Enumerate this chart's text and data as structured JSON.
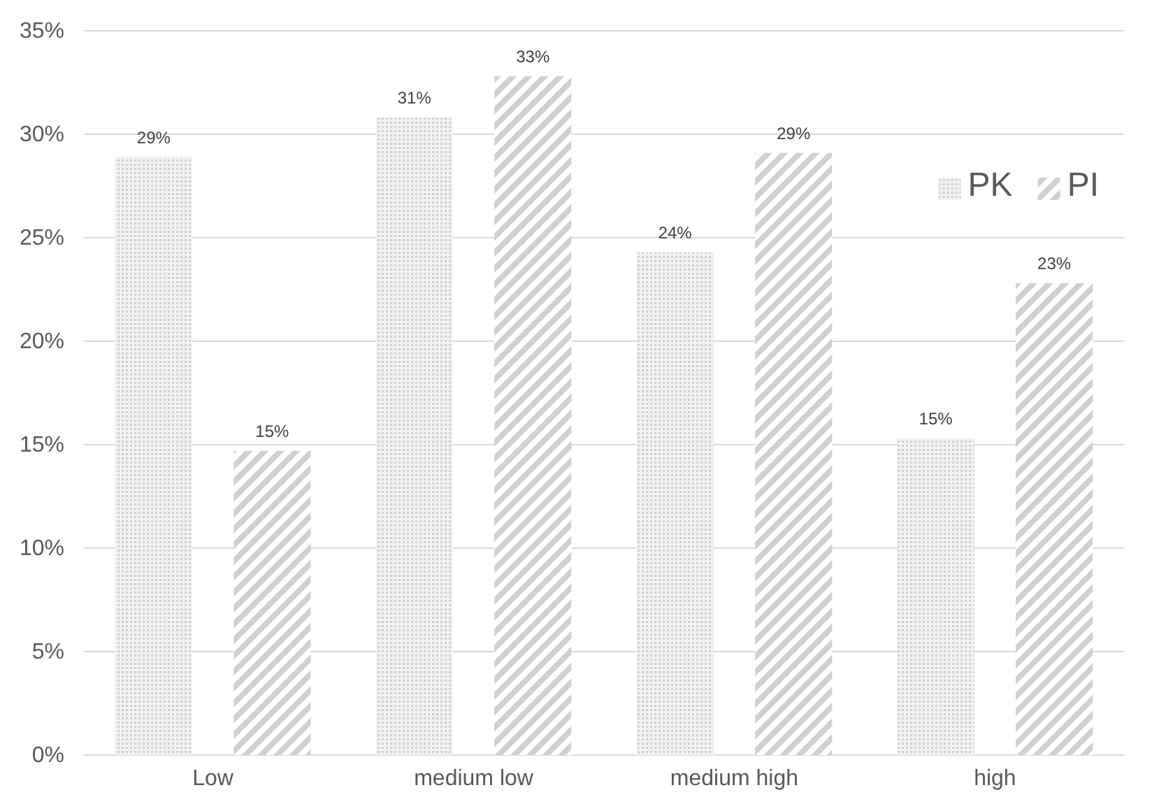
{
  "chart_data": {
    "type": "bar",
    "categories": [
      "Low",
      "medium low",
      "medium high",
      "high"
    ],
    "series": [
      {
        "name": "PK",
        "color": "#d0d0d0",
        "values": [
          28.9,
          30.8,
          24.3,
          15.3
        ],
        "value_labels": [
          "29%",
          "31%",
          "24%",
          "15%"
        ]
      },
      {
        "name": "PI",
        "color": "#d0d0d0",
        "values": [
          14.7,
          32.8,
          29.1,
          22.8
        ],
        "value_labels": [
          "15%",
          "33%",
          "29%",
          "23%"
        ]
      }
    ],
    "ylim": [
      0,
      35
    ],
    "yticks": [
      {
        "value": 0,
        "label": "0%"
      },
      {
        "value": 5,
        "label": "5%"
      },
      {
        "value": 10,
        "label": "10%"
      },
      {
        "value": 15,
        "label": "15%"
      },
      {
        "value": 20,
        "label": "20%"
      },
      {
        "value": 25,
        "label": "25%"
      },
      {
        "value": 30,
        "label": "30%"
      },
      {
        "value": 35,
        "label": "35%"
      }
    ],
    "grid": "y",
    "legend": "top right"
  }
}
